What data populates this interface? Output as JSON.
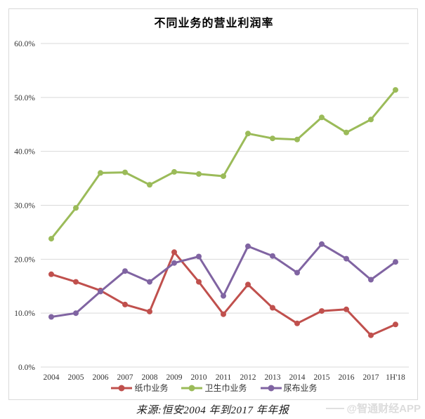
{
  "title": "不同业务的营业利润率",
  "source": "来源:恒安2004 年到2017 年年报",
  "watermark": "@智通财经APP",
  "chart_data": {
    "type": "line",
    "title": "不同业务的营业利润率",
    "categories": [
      "2004",
      "2005",
      "2006",
      "2007",
      "2008",
      "2009",
      "2010",
      "2011",
      "2012",
      "2013",
      "2014",
      "2015",
      "2016",
      "2017",
      "1H'18"
    ],
    "series": [
      {
        "name": "纸巾业务",
        "color": "#C0504D",
        "values": [
          17.2,
          15.8,
          14.2,
          11.6,
          10.3,
          21.3,
          15.8,
          9.8,
          15.3,
          11.0,
          8.1,
          10.4,
          10.7,
          5.9,
          7.9
        ]
      },
      {
        "name": "卫生巾业务",
        "color": "#9BBB59",
        "values": [
          23.8,
          29.5,
          36.0,
          36.1,
          33.8,
          36.2,
          35.8,
          35.4,
          43.3,
          42.4,
          42.2,
          46.3,
          43.5,
          45.9,
          51.4
        ]
      },
      {
        "name": "尿布业务",
        "color": "#8064A2",
        "values": [
          9.3,
          10.0,
          14.0,
          17.8,
          15.8,
          19.3,
          20.5,
          13.2,
          22.4,
          20.6,
          17.5,
          22.8,
          20.1,
          16.2,
          19.5
        ]
      }
    ],
    "ylim": [
      0,
      60
    ],
    "y_ticks": [
      "0.0%",
      "10.0%",
      "20.0%",
      "30.0%",
      "40.0%",
      "50.0%",
      "60.0%"
    ],
    "grid": true,
    "legend_position": "bottom"
  }
}
